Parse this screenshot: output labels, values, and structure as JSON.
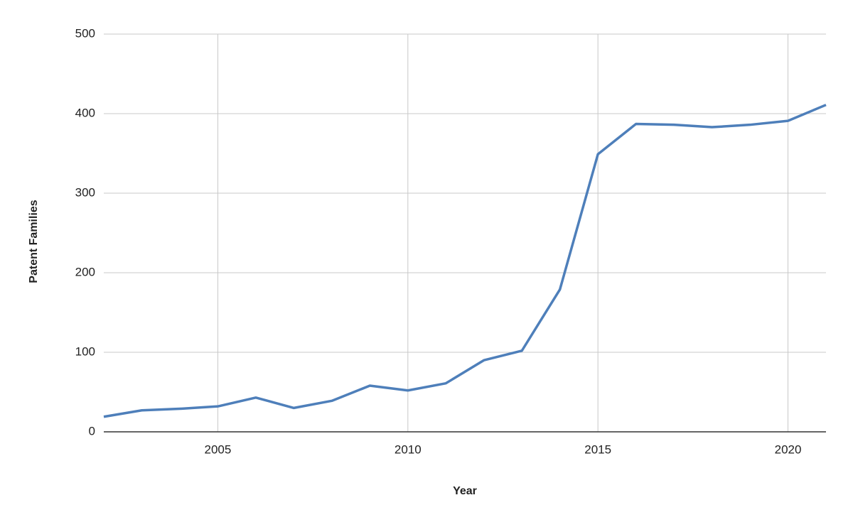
{
  "chart_data": {
    "type": "line",
    "x_label": "Year",
    "y_label": "Patent Families",
    "x": [
      2002,
      2003,
      2004,
      2005,
      2006,
      2007,
      2008,
      2009,
      2010,
      2011,
      2012,
      2013,
      2014,
      2015,
      2016,
      2017,
      2018,
      2019,
      2020,
      2021
    ],
    "series": [
      {
        "color": "#4e7fba",
        "values": [
          19,
          27,
          29,
          32,
          43,
          30,
          39,
          58,
          52,
          61,
          90,
          102,
          179,
          349,
          387,
          386,
          383,
          386,
          391,
          411
        ]
      }
    ],
    "xlim": [
      2002,
      2021
    ],
    "xticks": [
      2005,
      2010,
      2015,
      2020
    ],
    "ylim": [
      0,
      500
    ],
    "yticks": [
      0,
      100,
      200,
      300,
      400,
      500
    ],
    "grid": true
  }
}
